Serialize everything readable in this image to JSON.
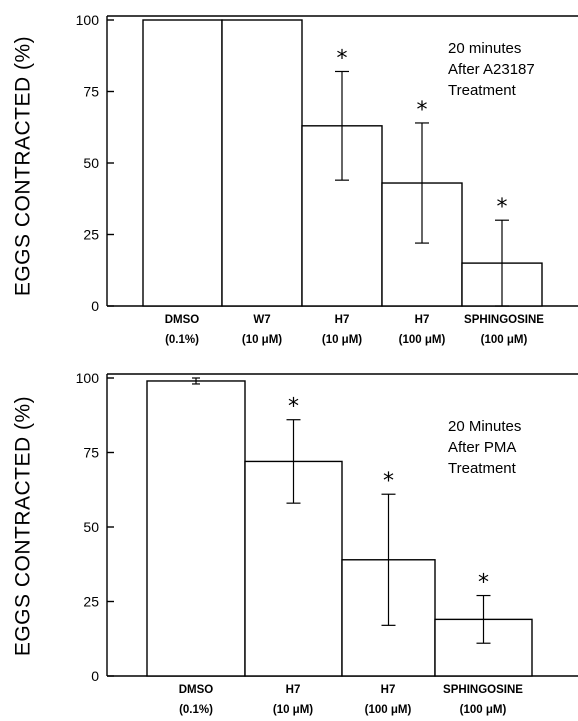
{
  "chart_data": [
    {
      "type": "bar",
      "ylabel": "EGGS CONTRACTED (%)",
      "ylim": [
        0,
        100
      ],
      "yticks": [
        "0",
        "25",
        "50",
        "75",
        "100"
      ],
      "categories": [
        {
          "name": "DMSO",
          "dose": "(0.1%)"
        },
        {
          "name": "W7",
          "dose": "(10 μM)"
        },
        {
          "name": "H7",
          "dose": "(10 μM)"
        },
        {
          "name": "H7",
          "dose": "(100 μM)"
        },
        {
          "name": "SPHINGOSINE",
          "dose": "(100 μM)"
        }
      ],
      "values": [
        100,
        100,
        63,
        43,
        15
      ],
      "errors": [
        0,
        0,
        19,
        21,
        15
      ],
      "significant": [
        false,
        false,
        true,
        true,
        true
      ],
      "significance_marker": "*",
      "annotation": [
        "20 minutes",
        "After A23187",
        "Treatment"
      ]
    },
    {
      "type": "bar",
      "ylabel": "EGGS CONTRACTED (%)",
      "ylim": [
        0,
        100
      ],
      "yticks": [
        "0",
        "25",
        "50",
        "75",
        "100"
      ],
      "categories": [
        {
          "name": "DMSO",
          "dose": "(0.1%)"
        },
        {
          "name": "H7",
          "dose": "(10 μM)"
        },
        {
          "name": "H7",
          "dose": "(100 μM)"
        },
        {
          "name": "SPHINGOSINE",
          "dose": "(100 μM)"
        }
      ],
      "values": [
        99,
        72,
        39,
        19
      ],
      "errors": [
        1,
        14,
        22,
        8
      ],
      "significant": [
        false,
        true,
        true,
        true
      ],
      "significance_marker": "*",
      "annotation": [
        "20 Minutes",
        "After PMA",
        "Treatment"
      ]
    }
  ]
}
